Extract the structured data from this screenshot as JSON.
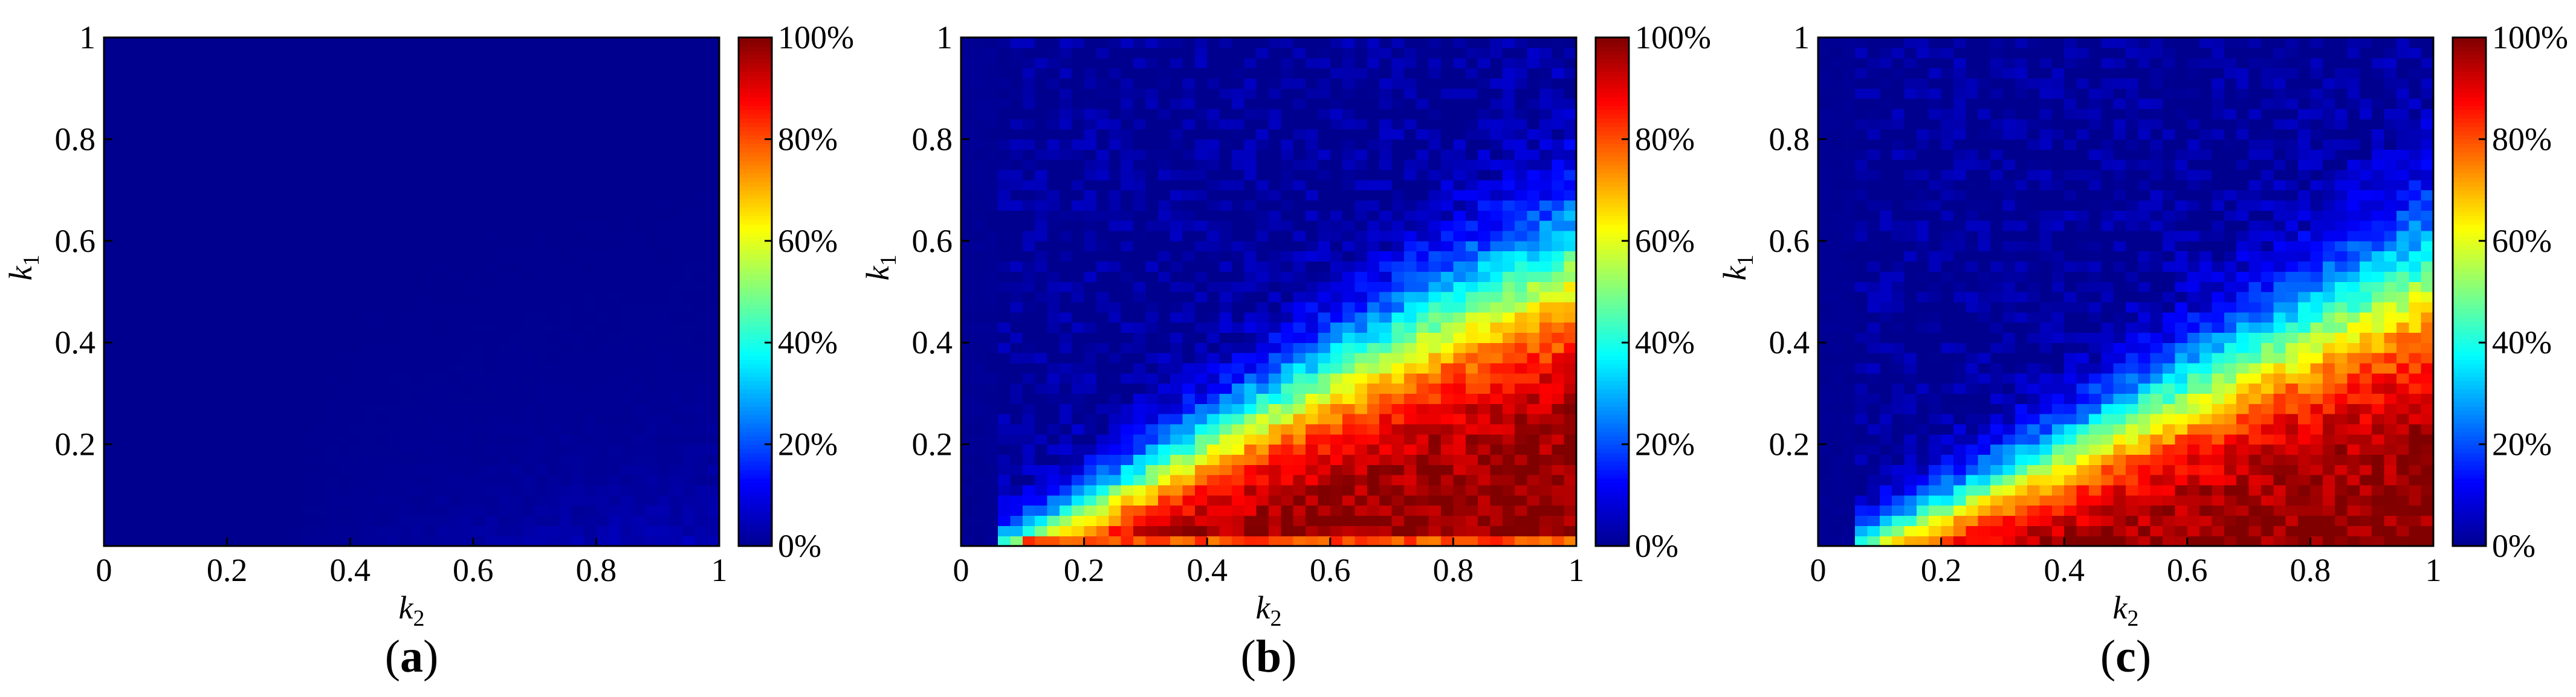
{
  "figure": {
    "panel_captions": [
      "a",
      "b",
      "c"
    ]
  },
  "colormap": [
    "#00008f",
    "#0000ff",
    "#0080ff",
    "#00ffff",
    "#80ff80",
    "#ffff00",
    "#ff8000",
    "#ff0000",
    "#800000"
  ],
  "chart_data": [
    {
      "type": "heatmap",
      "panel": "a",
      "title": "",
      "xlabel": "k",
      "xlabel_sub": "2",
      "ylabel": "k",
      "ylabel_sub": "1",
      "xlim": [
        0,
        1
      ],
      "ylim": [
        0,
        1
      ],
      "xticks": [
        "0",
        "0.2",
        "0.4",
        "0.6",
        "0.8",
        "1"
      ],
      "yticks": [
        "0.2",
        "0.4",
        "0.6",
        "0.8",
        "1"
      ],
      "colorbar_ticks": [
        "0%",
        "20%",
        "40%",
        "60%",
        "80%",
        "100%"
      ],
      "colorbar_range": [
        0,
        100
      ],
      "grid_size": [
        50,
        50
      ],
      "peak_value_percent": 5,
      "description_of_values": "near 0% everywhere; slight rise (to ~5%) near k1=0 for k2 between 0.4 and 1"
    },
    {
      "type": "heatmap",
      "panel": "b",
      "title": "",
      "xlabel": "k",
      "xlabel_sub": "2",
      "ylabel": "k",
      "ylabel_sub": "1",
      "xlim": [
        0,
        1
      ],
      "ylim": [
        0,
        1
      ],
      "xticks": [
        "0",
        "0.2",
        "0.4",
        "0.6",
        "0.8",
        "1"
      ],
      "yticks": [
        "0.2",
        "0.4",
        "0.6",
        "0.8",
        "1"
      ],
      "colorbar_ticks": [
        "0%",
        "20%",
        "40%",
        "60%",
        "80%",
        "100%"
      ],
      "colorbar_range": [
        0,
        100
      ],
      "grid_size": [
        50,
        50
      ],
      "transition_boundary_k1_at_k2": {
        "k2": [
          0.07,
          0.2,
          0.4,
          0.6,
          0.8,
          1.0
        ],
        "k1": [
          0.0,
          0.07,
          0.2,
          0.33,
          0.45,
          0.55
        ]
      },
      "high_region_value_percent": 100,
      "bottom_row_value_percent": 80
    },
    {
      "type": "heatmap",
      "panel": "c",
      "title": "",
      "xlabel": "k",
      "xlabel_sub": "2",
      "ylabel": "k",
      "ylabel_sub": "1",
      "xlim": [
        0,
        1
      ],
      "ylim": [
        0,
        1
      ],
      "xticks": [
        "0",
        "0.2",
        "0.4",
        "0.6",
        "0.8",
        "1"
      ],
      "yticks": [
        "0.2",
        "0.4",
        "0.6",
        "0.8",
        "1"
      ],
      "colorbar_ticks": [
        "0%",
        "20%",
        "40%",
        "60%",
        "80%",
        "100%"
      ],
      "colorbar_range": [
        0,
        100
      ],
      "grid_size": [
        50,
        50
      ],
      "transition_boundary_k1_at_k2": {
        "k2": [
          0.07,
          0.2,
          0.4,
          0.6,
          0.8,
          1.0
        ],
        "k1": [
          0.0,
          0.07,
          0.18,
          0.3,
          0.42,
          0.53
        ]
      },
      "high_region_value_percent": 100
    }
  ]
}
